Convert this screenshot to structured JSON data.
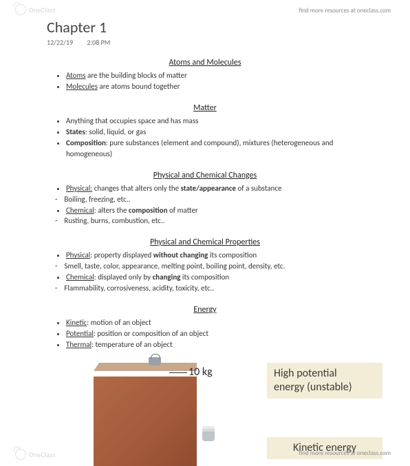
{
  "watermark": {
    "brand": "OneClass",
    "resources": "find more resources at oneclass.com"
  },
  "title": "Chapter 1",
  "meta": {
    "date": "12/22/19",
    "time": "2:08 PM"
  },
  "sections": {
    "atoms": {
      "heading": "Atoms and Molecules",
      "items": [
        {
          "u": "Atoms",
          "rest": " are the building blocks of matter"
        },
        {
          "u": "Molecules",
          "rest": " are atoms bound together"
        }
      ]
    },
    "matter": {
      "heading": "Matter",
      "b1": "Anything that occupies space and has mass",
      "b2_lead": "States",
      "b2_rest": ": solid, liquid, or gas",
      "b3_lead": "Composition",
      "b3_rest": ": pure substances (element and compound), mixtures (heterogeneous and homogeneous)"
    },
    "changes": {
      "heading": "Physical and Chemical Changes",
      "p_lead": "Physical:",
      "p_mid": " changes that alters only the ",
      "p_bold": "state/appearance",
      "p_end": " of a substance",
      "p_sub": "Boiling, freezing, etc..",
      "c_lead": "Chemical",
      "c_mid": ": alters the ",
      "c_bold": "composition",
      "c_end": " of matter",
      "c_sub": "Rusting, burns, combustion, etc.."
    },
    "props": {
      "heading": "Physical and Chemical Properties",
      "p_lead": "Physical",
      "p_mid": ": property displayed ",
      "p_bold": "without changing",
      "p_end": " its composition",
      "p_sub": "Smell, taste, color, appearance, melting point, boiling point, density, etc.",
      "c_lead": "Chemical",
      "c_mid": ": displayed only by ",
      "c_bold": "changing",
      "c_end": " its composition",
      "c_sub": "Flammability, corrosiveness, acidity, toxicity, etc.."
    },
    "energy": {
      "heading": "Energy",
      "k_lead": "Kinetic",
      "k_rest": ": motion of an object",
      "pot_lead": "Potential",
      "pot_rest": ": position or composition of an object",
      "t_lead": "Thermal",
      "t_rest": ": temperature of an object"
    }
  },
  "figure": {
    "mass_label": "10 kg",
    "box1_l1": "High potential",
    "box1_l2": "energy (unstable)",
    "box2": "Kinetic energy",
    "colors": {
      "box_bg": "#f3edd7",
      "brick1": "#b06a47",
      "brick2": "#a25a3a",
      "brick3": "#8f4c30"
    }
  }
}
